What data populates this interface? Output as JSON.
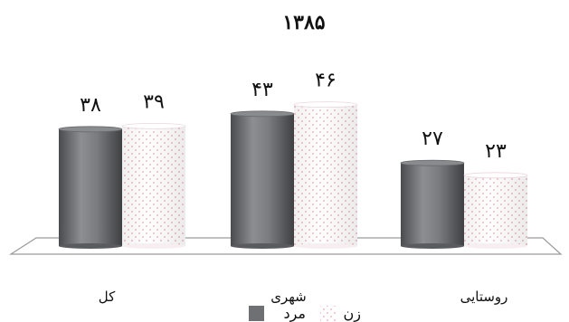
{
  "chart_data": {
    "type": "bar",
    "title": "۱۳۸۵",
    "categories": [
      "کل",
      "شهری",
      "روستایی"
    ],
    "series": [
      {
        "name": "مرد",
        "values": [
          38,
          43,
          27
        ],
        "value_labels": [
          "۳۸",
          "۴۳",
          "۲۷"
        ],
        "color": "#6f7073"
      },
      {
        "name": "زن",
        "values": [
          39,
          46,
          23
        ],
        "value_labels": [
          "۳۹",
          "۴۶",
          "۲۳"
        ],
        "color": "#f3f3f3",
        "dot_color": "#f2a5b4"
      }
    ],
    "ylim": [
      0,
      50
    ],
    "grid": false,
    "legend": "bottom-center",
    "xlabel": "",
    "ylabel": ""
  }
}
